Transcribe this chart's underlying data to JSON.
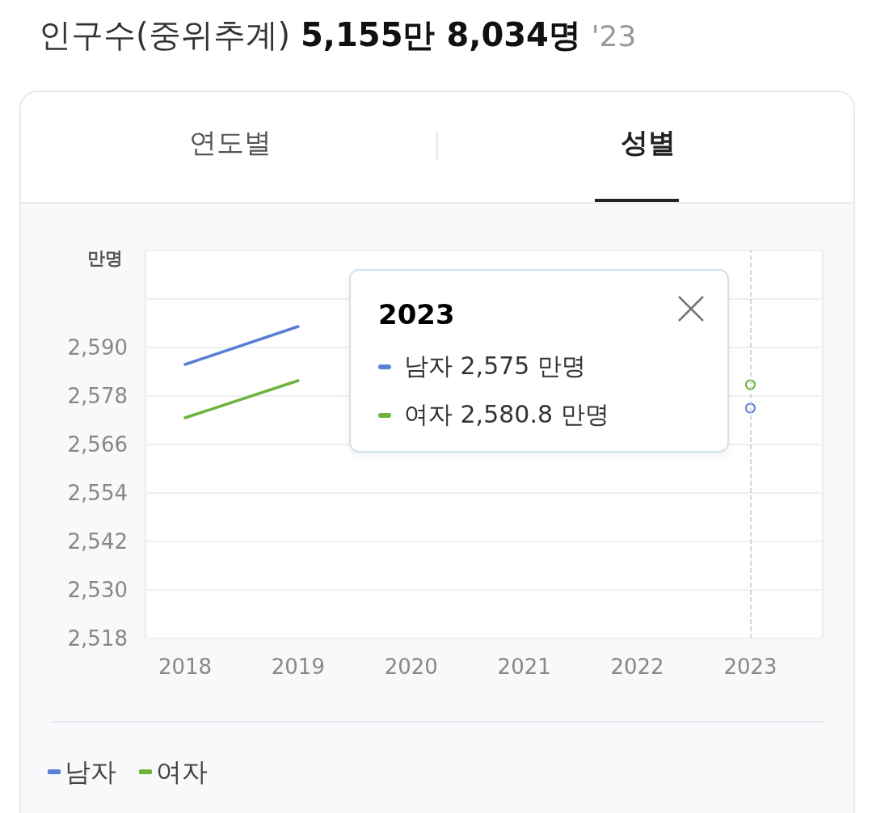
{
  "chart_data": {
    "type": "line",
    "title": "인구수(중위추계)",
    "subtitle": "5,155만 8,034명",
    "ylabel": "만명",
    "annotations": [
      "'23",
      "연도별",
      "성별",
      "2023",
      "남자 2,575 만명",
      "여자 2,580.8 만명"
    ],
    "x": [
      2018,
      2019,
      2020,
      2021,
      2022,
      2023
    ],
    "series": [
      {
        "name": "남자",
        "color": "#5a7fd6",
        "values": [
          2585.8,
          2595.2,
          null,
          null,
          null,
          2575
        ]
      },
      {
        "name": "여자",
        "color": "#6cb43c",
        "values": [
          2572.6,
          2581.8,
          null,
          null,
          null,
          2580.8
        ]
      }
    ],
    "xlim": [
      2017.65,
      2023.64
    ],
    "xticks": [
      2018,
      2019,
      2020,
      2021,
      2022,
      2023
    ],
    "ylim": [
      2518,
      2614
    ],
    "yticks": [
      {
        "value": 2518,
        "label": "2,518"
      },
      {
        "value": 2530,
        "label": "2,530"
      },
      {
        "value": 2542,
        "label": "2,542"
      },
      {
        "value": 2554,
        "label": "2,554"
      },
      {
        "value": 2566,
        "label": "2,566"
      },
      {
        "value": 2578,
        "label": "2,578"
      },
      {
        "value": 2590,
        "label": "2,590"
      },
      {
        "value": 2602,
        "label": null
      },
      {
        "value": 2614,
        "label": null
      }
    ],
    "ref_lines": [
      {
        "axis": "x",
        "value": 2023,
        "color": "#c8c8c8",
        "line_style": "dashed"
      }
    ],
    "grid": "y",
    "legend": "bottom left",
    "marker": "none",
    "line_style": "solid"
  }
}
